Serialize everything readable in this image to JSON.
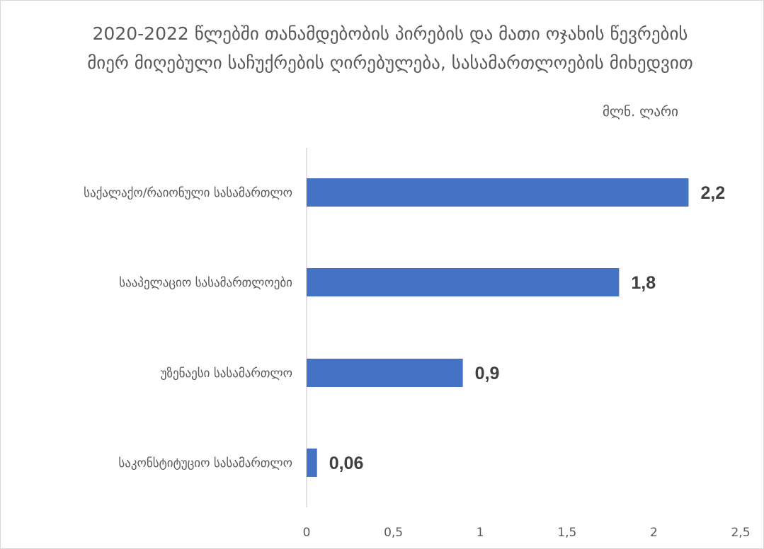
{
  "chart_data": {
    "type": "bar",
    "orientation": "horizontal",
    "title": "2020-2022 წლებში თანამდებობის პირების და მათი ოჯახის წევრების მიერ მიღებული საჩუქრების ღირებულება, სასამართლოების მიხედვით",
    "unit_label": "მლნ. ლარი",
    "categories": [
      "საქალაქო/რაიონული სასამართლო",
      "სააპელაციო სასამართლოები",
      "უზენაესი სასამართლო",
      "საკონსტიტუციო სასამართლო"
    ],
    "values": [
      2.2,
      1.8,
      0.9,
      0.06
    ],
    "data_labels": [
      "2,2",
      "1,8",
      "0,9",
      "0,06"
    ],
    "xlim": [
      0,
      2.5
    ],
    "x_ticks": [
      "0",
      "0,5",
      "1",
      "1,5",
      "2",
      "2,5"
    ],
    "bar_color": "#4472c4",
    "grid": false,
    "legend": "none"
  }
}
